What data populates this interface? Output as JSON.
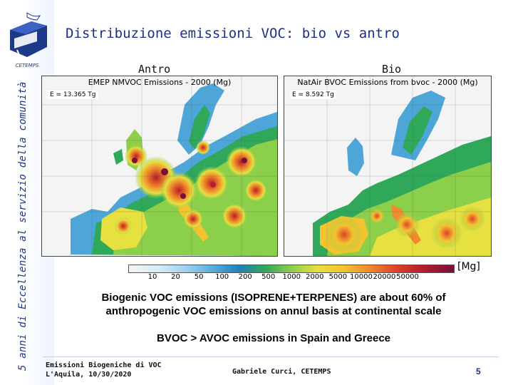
{
  "header": {
    "title": "Distribuzione emissioni VOC: bio vs antro",
    "logo_label": "CETEMPS",
    "side_tagline": "5 anni di Eccellenza al servizio della comunità"
  },
  "panels": {
    "antro": {
      "label": "Antro",
      "map_title": "EMEP NMVOC Emissions - 2000 (Mg)",
      "total": "E = 13.365 Tg"
    },
    "bio": {
      "label": "Bio",
      "map_title": "NatAir BVOC Emissions from bvoc - 2000 (Mg)",
      "total": "E = 8.592 Tg"
    }
  },
  "colorbar": {
    "ticks": [
      "10",
      "20",
      "50",
      "100",
      "200",
      "500",
      "1000",
      "2000",
      "5000",
      "10000",
      "20000",
      "50000"
    ],
    "unit": "[Mg]"
  },
  "findings": {
    "line1": "Biogenic VOC emissions (ISOPRENE+TERPENES) are about 60% of",
    "line2": "anthropogenic VOC emissions on annul basis at continental scale",
    "line3": "BVOC > AVOC emissions in Spain and Greece"
  },
  "footer": {
    "left_line1": "Emissioni Biogeniche di VOC",
    "left_line2": "L'Aquila, 10/30/2020",
    "center": "Gabriele Curci, CETEMPS",
    "page": "5"
  },
  "colors": {
    "title": "#1d2f8a",
    "water": "#f4f4f4"
  }
}
